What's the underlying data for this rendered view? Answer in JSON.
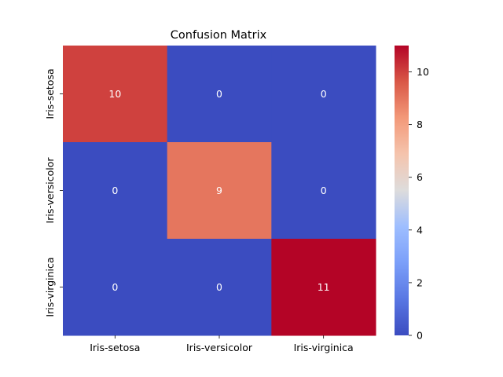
{
  "chart_data": {
    "type": "heatmap",
    "title": "Confusion Matrix",
    "row_labels": [
      "Iris-setosa",
      "Iris-versicolor",
      "Iris-virginica"
    ],
    "col_labels": [
      "Iris-setosa",
      "Iris-versicolor",
      "Iris-virginica"
    ],
    "values": [
      [
        10,
        0,
        0
      ],
      [
        0,
        9,
        0
      ],
      [
        0,
        0,
        11
      ]
    ],
    "colormap": "coolwarm",
    "vmin": 0,
    "vmax": 11,
    "colorbar_ticks": [
      "0",
      "2",
      "4",
      "6",
      "8",
      "10"
    ],
    "annotation_color": "#ffffff"
  }
}
